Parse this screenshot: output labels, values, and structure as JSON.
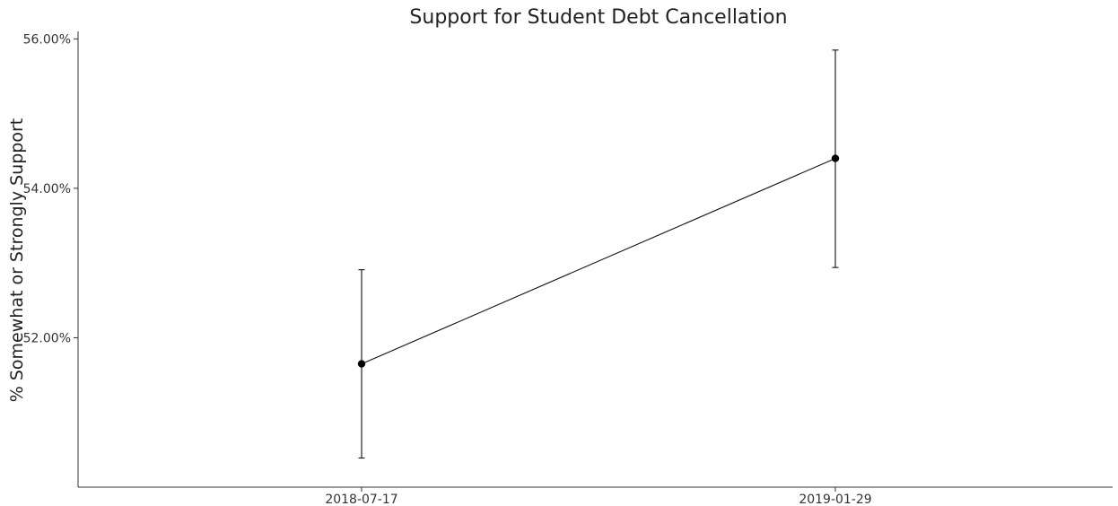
{
  "chart_data": {
    "type": "line",
    "title": "Support for Student Debt Cancellation",
    "xlabel": "",
    "ylabel": "% Somewhat or Strongly Support",
    "x": [
      "2018-07-17",
      "2019-01-29"
    ],
    "y": [
      51.65,
      54.4
    ],
    "error_bars": [
      {
        "low": 50.39,
        "high": 52.91
      },
      {
        "low": 52.94,
        "high": 55.85
      }
    ],
    "yticks": [
      "52.00%",
      "54.00%",
      "56.00%"
    ],
    "ylim": [
      50.0,
      56.1
    ],
    "grid": false,
    "legend": "none"
  }
}
